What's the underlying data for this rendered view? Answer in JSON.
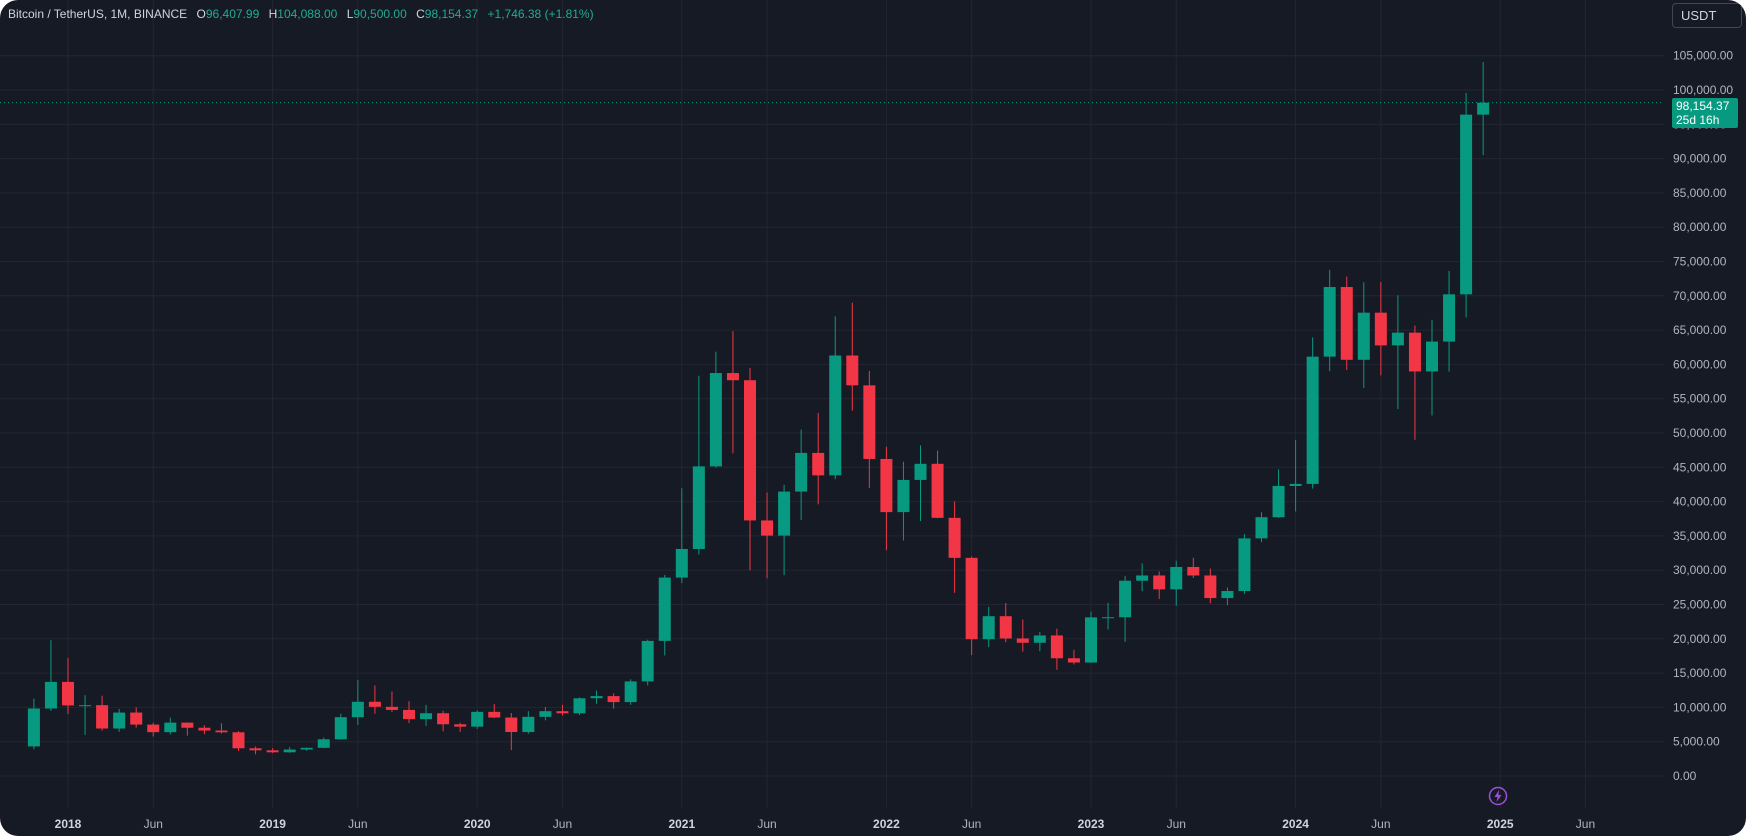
{
  "legend": {
    "symbol": "Bitcoin / TetherUS, 1M, BINANCE",
    "open_label": "O",
    "open_value": "96,407.99",
    "high_label": "H",
    "high_value": "104,088.00",
    "low_label": "L",
    "low_value": "90,500.00",
    "close_label": "C",
    "close_value": "98,154.37",
    "change": "+1,746.38 (+1.81%)"
  },
  "currency_button": "USDT",
  "last_price": {
    "value": "98,154.37",
    "countdown": "25d 16h"
  },
  "colors": {
    "background": "#161a25",
    "up": "#089981",
    "down": "#f23645",
    "grid": "#232632",
    "text": "#b2b5be"
  },
  "bottom_icon": "lightning-icon",
  "chart_data": {
    "type": "candlestick",
    "interval": "1M",
    "ylim": [
      0,
      105000
    ],
    "grid": true,
    "y_ticks": [
      "105,000.00",
      "100,000.00",
      "95,000.00",
      "90,000.00",
      "85,000.00",
      "80,000.00",
      "75,000.00",
      "70,000.00",
      "65,000.00",
      "60,000.00",
      "55,000.00",
      "50,000.00",
      "45,000.00",
      "40,000.00",
      "35,000.00",
      "30,000.00",
      "25,000.00",
      "20,000.00",
      "15,000.00",
      "10,000.00",
      "5,000.00",
      "0.00"
    ],
    "x_ticks": [
      {
        "label": "2018",
        "bold": true
      },
      {
        "label": "Jun",
        "bold": false
      },
      {
        "label": "2019",
        "bold": true
      },
      {
        "label": "Jun",
        "bold": false
      },
      {
        "label": "2020",
        "bold": true
      },
      {
        "label": "Jun",
        "bold": false
      },
      {
        "label": "2021",
        "bold": true
      },
      {
        "label": "Jun",
        "bold": false
      },
      {
        "label": "2022",
        "bold": true
      },
      {
        "label": "Jun",
        "bold": false
      },
      {
        "label": "2023",
        "bold": true
      },
      {
        "label": "Jun",
        "bold": false
      },
      {
        "label": "2024",
        "bold": true
      },
      {
        "label": "Jun",
        "bold": false
      },
      {
        "label": "2025",
        "bold": true
      },
      {
        "label": "Jun",
        "bold": false
      }
    ],
    "candles": [
      {
        "date": "2017-11",
        "o": 4315,
        "h": 11300,
        "l": 3900,
        "c": 9838
      },
      {
        "date": "2017-12",
        "o": 9838,
        "h": 19798,
        "l": 9500,
        "c": 13716
      },
      {
        "date": "2018-01",
        "o": 13716,
        "h": 17176,
        "l": 9035,
        "c": 10285
      },
      {
        "date": "2018-02",
        "o": 10285,
        "h": 11786,
        "l": 6000,
        "c": 10326
      },
      {
        "date": "2018-03",
        "o": 10326,
        "h": 11710,
        "l": 6600,
        "c": 6923
      },
      {
        "date": "2018-04",
        "o": 6923,
        "h": 9765,
        "l": 6425,
        "c": 9246
      },
      {
        "date": "2018-05",
        "o": 9246,
        "h": 10020,
        "l": 7051,
        "c": 7494
      },
      {
        "date": "2018-06",
        "o": 7494,
        "h": 7754,
        "l": 5755,
        "c": 6391
      },
      {
        "date": "2018-07",
        "o": 6391,
        "h": 8507,
        "l": 6070,
        "c": 7780
      },
      {
        "date": "2018-08",
        "o": 7780,
        "h": 7800,
        "l": 5880,
        "c": 7037
      },
      {
        "date": "2018-09",
        "o": 7037,
        "h": 7410,
        "l": 6100,
        "c": 6626
      },
      {
        "date": "2018-10",
        "o": 6626,
        "h": 7680,
        "l": 6200,
        "c": 6371
      },
      {
        "date": "2018-11",
        "o": 6371,
        "h": 6545,
        "l": 3652,
        "c": 4041
      },
      {
        "date": "2018-12",
        "o": 4041,
        "h": 4300,
        "l": 3156,
        "c": 3742
      },
      {
        "date": "2019-01",
        "o": 3742,
        "h": 4069,
        "l": 3349,
        "c": 3457
      },
      {
        "date": "2019-02",
        "o": 3457,
        "h": 4198,
        "l": 3373,
        "c": 3855
      },
      {
        "date": "2019-03",
        "o": 3855,
        "h": 4140,
        "l": 3689,
        "c": 4105
      },
      {
        "date": "2019-04",
        "o": 4105,
        "h": 5600,
        "l": 4067,
        "c": 5350
      },
      {
        "date": "2019-05",
        "o": 5350,
        "h": 9074,
        "l": 5300,
        "c": 8574
      },
      {
        "date": "2019-06",
        "o": 8574,
        "h": 13970,
        "l": 7440,
        "c": 10818
      },
      {
        "date": "2019-07",
        "o": 10818,
        "h": 13188,
        "l": 9069,
        "c": 10085
      },
      {
        "date": "2019-08",
        "o": 10085,
        "h": 12325,
        "l": 9320,
        "c": 9631
      },
      {
        "date": "2019-09",
        "o": 9631,
        "h": 10905,
        "l": 7710,
        "c": 8294
      },
      {
        "date": "2019-10",
        "o": 8294,
        "h": 10370,
        "l": 7300,
        "c": 9150
      },
      {
        "date": "2019-11",
        "o": 9150,
        "h": 9505,
        "l": 6515,
        "c": 7540
      },
      {
        "date": "2019-12",
        "o": 7540,
        "h": 7750,
        "l": 6435,
        "c": 7195
      },
      {
        "date": "2020-01",
        "o": 7195,
        "h": 9578,
        "l": 6871,
        "c": 9352
      },
      {
        "date": "2020-02",
        "o": 9352,
        "h": 10500,
        "l": 8445,
        "c": 8523
      },
      {
        "date": "2020-03",
        "o": 8523,
        "h": 9188,
        "l": 3782,
        "c": 6410
      },
      {
        "date": "2020-04",
        "o": 6410,
        "h": 9460,
        "l": 6150,
        "c": 8625
      },
      {
        "date": "2020-05",
        "o": 8625,
        "h": 10067,
        "l": 8117,
        "c": 9448
      },
      {
        "date": "2020-06",
        "o": 9448,
        "h": 10380,
        "l": 8833,
        "c": 9138
      },
      {
        "date": "2020-07",
        "o": 9138,
        "h": 11444,
        "l": 8893,
        "c": 11335
      },
      {
        "date": "2020-08",
        "o": 11335,
        "h": 12468,
        "l": 10518,
        "c": 11649
      },
      {
        "date": "2020-09",
        "o": 11649,
        "h": 12050,
        "l": 9825,
        "c": 10776
      },
      {
        "date": "2020-10",
        "o": 10776,
        "h": 14100,
        "l": 10374,
        "c": 13791
      },
      {
        "date": "2020-11",
        "o": 13791,
        "h": 19863,
        "l": 13195,
        "c": 19695
      },
      {
        "date": "2020-12",
        "o": 19695,
        "h": 29300,
        "l": 17572,
        "c": 28923
      },
      {
        "date": "2021-01",
        "o": 28923,
        "h": 41950,
        "l": 28130,
        "c": 33092
      },
      {
        "date": "2021-02",
        "o": 33092,
        "h": 58352,
        "l": 32296,
        "c": 45135
      },
      {
        "date": "2021-03",
        "o": 45135,
        "h": 61844,
        "l": 44950,
        "c": 58740
      },
      {
        "date": "2021-04",
        "o": 58740,
        "h": 64854,
        "l": 47044,
        "c": 57694
      },
      {
        "date": "2021-05",
        "o": 57694,
        "h": 59500,
        "l": 30000,
        "c": 37253
      },
      {
        "date": "2021-06",
        "o": 37253,
        "h": 41330,
        "l": 28805,
        "c": 35045
      },
      {
        "date": "2021-07",
        "o": 35045,
        "h": 42448,
        "l": 29278,
        "c": 41461
      },
      {
        "date": "2021-08",
        "o": 41461,
        "h": 50500,
        "l": 37332,
        "c": 47100
      },
      {
        "date": "2021-09",
        "o": 47100,
        "h": 52920,
        "l": 39600,
        "c": 43824
      },
      {
        "date": "2021-10",
        "o": 43824,
        "h": 67000,
        "l": 43283,
        "c": 61299
      },
      {
        "date": "2021-11",
        "o": 61299,
        "h": 69000,
        "l": 53256,
        "c": 56950
      },
      {
        "date": "2021-12",
        "o": 56950,
        "h": 59053,
        "l": 42000,
        "c": 46216
      },
      {
        "date": "2022-01",
        "o": 46216,
        "h": 47990,
        "l": 32917,
        "c": 38466
      },
      {
        "date": "2022-02",
        "o": 38466,
        "h": 45821,
        "l": 34322,
        "c": 43160
      },
      {
        "date": "2022-03",
        "o": 43160,
        "h": 48189,
        "l": 37155,
        "c": 45510
      },
      {
        "date": "2022-04",
        "o": 45510,
        "h": 47444,
        "l": 37578,
        "c": 37630
      },
      {
        "date": "2022-05",
        "o": 37630,
        "h": 40023,
        "l": 26700,
        "c": 31801
      },
      {
        "date": "2022-06",
        "o": 31801,
        "h": 31986,
        "l": 17622,
        "c": 19942
      },
      {
        "date": "2022-07",
        "o": 19942,
        "h": 24668,
        "l": 18782,
        "c": 23293
      },
      {
        "date": "2022-08",
        "o": 23293,
        "h": 25211,
        "l": 19520,
        "c": 20050
      },
      {
        "date": "2022-09",
        "o": 20050,
        "h": 22799,
        "l": 18125,
        "c": 19423
      },
      {
        "date": "2022-10",
        "o": 19423,
        "h": 20988,
        "l": 18190,
        "c": 20490
      },
      {
        "date": "2022-11",
        "o": 20490,
        "h": 21480,
        "l": 15476,
        "c": 17164
      },
      {
        "date": "2022-12",
        "o": 17164,
        "h": 18387,
        "l": 16256,
        "c": 16542
      },
      {
        "date": "2023-01",
        "o": 16542,
        "h": 23960,
        "l": 16499,
        "c": 23125
      },
      {
        "date": "2023-02",
        "o": 23125,
        "h": 25250,
        "l": 21351,
        "c": 23141
      },
      {
        "date": "2023-03",
        "o": 23141,
        "h": 29184,
        "l": 19549,
        "c": 28465
      },
      {
        "date": "2023-04",
        "o": 28465,
        "h": 31000,
        "l": 26942,
        "c": 29233
      },
      {
        "date": "2023-05",
        "o": 29233,
        "h": 29820,
        "l": 25811,
        "c": 27210
      },
      {
        "date": "2023-06",
        "o": 27210,
        "h": 31390,
        "l": 24800,
        "c": 30472
      },
      {
        "date": "2023-07",
        "o": 30472,
        "h": 31804,
        "l": 28861,
        "c": 29232
      },
      {
        "date": "2023-08",
        "o": 29232,
        "h": 30244,
        "l": 25166,
        "c": 25940
      },
      {
        "date": "2023-09",
        "o": 25940,
        "h": 27483,
        "l": 24901,
        "c": 26962
      },
      {
        "date": "2023-10",
        "o": 26962,
        "h": 35280,
        "l": 26538,
        "c": 34640
      },
      {
        "date": "2023-11",
        "o": 34640,
        "h": 38450,
        "l": 34097,
        "c": 37723
      },
      {
        "date": "2023-12",
        "o": 37723,
        "h": 44700,
        "l": 37626,
        "c": 42283
      },
      {
        "date": "2024-01",
        "o": 42283,
        "h": 48969,
        "l": 38555,
        "c": 42580
      },
      {
        "date": "2024-02",
        "o": 42580,
        "h": 63913,
        "l": 41884,
        "c": 61130
      },
      {
        "date": "2024-03",
        "o": 61130,
        "h": 73777,
        "l": 59005,
        "c": 71280
      },
      {
        "date": "2024-04",
        "o": 71280,
        "h": 72797,
        "l": 59191,
        "c": 60672
      },
      {
        "date": "2024-05",
        "o": 60672,
        "h": 71979,
        "l": 56552,
        "c": 67540
      },
      {
        "date": "2024-06",
        "o": 67540,
        "h": 71997,
        "l": 58402,
        "c": 62772
      },
      {
        "date": "2024-07",
        "o": 62772,
        "h": 70079,
        "l": 53485,
        "c": 64628
      },
      {
        "date": "2024-08",
        "o": 64628,
        "h": 65659,
        "l": 49000,
        "c": 58973
      },
      {
        "date": "2024-09",
        "o": 58973,
        "h": 66498,
        "l": 52550,
        "c": 63327
      },
      {
        "date": "2024-10",
        "o": 63327,
        "h": 73620,
        "l": 58946,
        "c": 70215
      },
      {
        "date": "2024-11",
        "o": 70215,
        "h": 99588,
        "l": 66835,
        "c": 96407
      },
      {
        "date": "2024-12",
        "o": 96407,
        "h": 104088,
        "l": 90500,
        "c": 98154
      }
    ]
  }
}
